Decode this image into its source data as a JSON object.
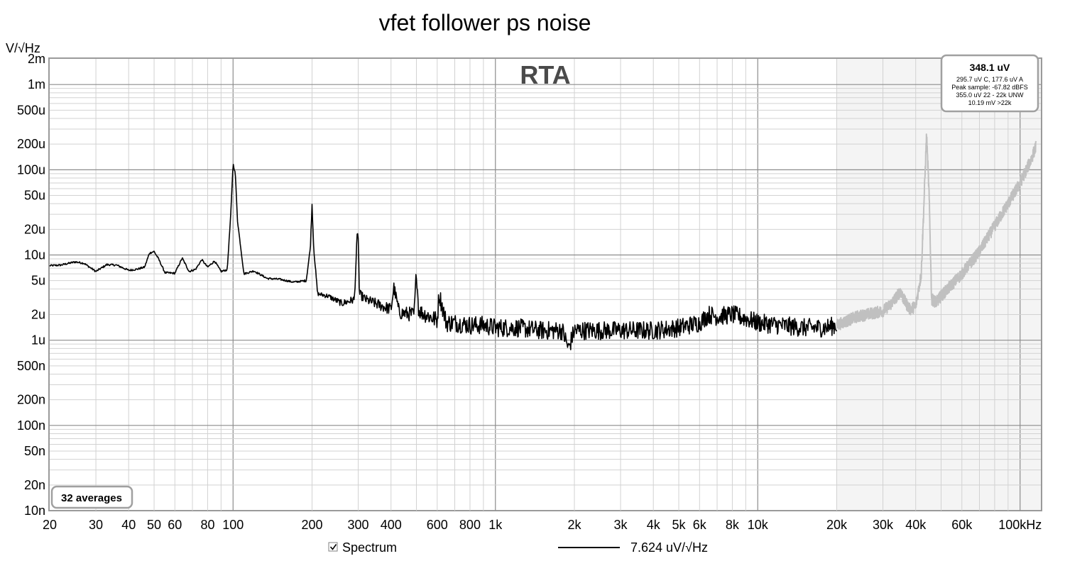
{
  "window": {
    "title": "vfet follower ps noise"
  },
  "chart_data": {
    "type": "line",
    "title": "vfet follower ps noise",
    "panel_label": "RTA",
    "ylabel": "V/√Hz",
    "xlabel": "",
    "x_unit_suffix": "Hz",
    "x_scale": "log",
    "y_scale": "log",
    "xlim": [
      20,
      120000
    ],
    "ylim": [
      1e-08,
      0.002
    ],
    "grid": true,
    "x_ticks": [
      {
        "v": 20,
        "label": "20"
      },
      {
        "v": 30,
        "label": "30"
      },
      {
        "v": 40,
        "label": "40"
      },
      {
        "v": 50,
        "label": "50"
      },
      {
        "v": 60,
        "label": "60"
      },
      {
        "v": 80,
        "label": "80"
      },
      {
        "v": 100,
        "label": "100"
      },
      {
        "v": 200,
        "label": "200"
      },
      {
        "v": 300,
        "label": "300"
      },
      {
        "v": 400,
        "label": "400"
      },
      {
        "v": 600,
        "label": "600"
      },
      {
        "v": 800,
        "label": "800"
      },
      {
        "v": 1000,
        "label": "1k"
      },
      {
        "v": 2000,
        "label": "2k"
      },
      {
        "v": 3000,
        "label": "3k"
      },
      {
        "v": 4000,
        "label": "4k"
      },
      {
        "v": 5000,
        "label": "5k"
      },
      {
        "v": 6000,
        "label": "6k"
      },
      {
        "v": 8000,
        "label": "8k"
      },
      {
        "v": 10000,
        "label": "10k"
      },
      {
        "v": 20000,
        "label": "20k"
      },
      {
        "v": 30000,
        "label": "30k"
      },
      {
        "v": 40000,
        "label": "40k"
      },
      {
        "v": 60000,
        "label": "60k"
      },
      {
        "v": 100000,
        "label": "100kHz"
      }
    ],
    "y_ticks": [
      {
        "v": 0.002,
        "label": "2m"
      },
      {
        "v": 0.001,
        "label": "1m"
      },
      {
        "v": 0.0005,
        "label": "500u"
      },
      {
        "v": 0.0002,
        "label": "200u"
      },
      {
        "v": 0.0001,
        "label": "100u"
      },
      {
        "v": 5e-05,
        "label": "50u"
      },
      {
        "v": 2e-05,
        "label": "20u"
      },
      {
        "v": 1e-05,
        "label": "10u"
      },
      {
        "v": 5e-06,
        "label": "5u"
      },
      {
        "v": 2e-06,
        "label": "2u"
      },
      {
        "v": 1e-06,
        "label": "1u"
      },
      {
        "v": 5e-07,
        "label": "500n"
      },
      {
        "v": 2e-07,
        "label": "200n"
      },
      {
        "v": 1e-07,
        "label": "100n"
      },
      {
        "v": 5e-08,
        "label": "50n"
      },
      {
        "v": 2e-08,
        "label": "20n"
      },
      {
        "v": 1e-08,
        "label": "10n"
      }
    ],
    "shaded_region_start_hz": 20000,
    "series": [
      {
        "name": "Spectrum",
        "color": "#000000",
        "range": "in-band",
        "x": [
          20,
          22,
          25,
          27,
          30,
          33,
          36,
          40,
          43,
          46,
          48,
          50,
          52,
          55,
          60,
          64,
          68,
          72,
          76,
          80,
          85,
          90,
          95,
          98,
          100,
          102,
          104,
          110,
          120,
          135,
          150,
          170,
          190,
          197,
          200,
          203,
          210,
          230,
          260,
          290,
          297,
          300,
          303,
          320,
          360,
          400,
          410,
          430,
          490,
          500,
          510,
          580,
          600,
          610,
          650,
          700,
          800,
          900,
          1000,
          1200,
          1500,
          1800,
          1900,
          2000,
          2500,
          3000,
          3500,
          4000,
          5000,
          6000,
          6500,
          7000,
          8000,
          9000,
          10000,
          12000,
          15000,
          18000,
          20000
        ],
        "y": [
          7.5e-06,
          7.6e-06,
          8.3e-06,
          8e-06,
          6.4e-06,
          7.7e-06,
          7.6e-06,
          6.6e-06,
          6.8e-06,
          7.2e-06,
          1.05e-05,
          1.1e-05,
          9e-06,
          6.2e-06,
          6.1e-06,
          9.2e-06,
          6.4e-06,
          6.8e-06,
          8.8e-06,
          7.2e-06,
          8.5e-06,
          6.4e-06,
          6.7e-06,
          3e-05,
          0.000118,
          9e-05,
          2.5e-05,
          6e-06,
          6.5e-06,
          5.3e-06,
          5.2e-06,
          4.8e-06,
          5e-06,
          1.2e-05,
          3.9e-05,
          1.2e-05,
          3.5e-06,
          3.3e-06,
          2.7e-06,
          3e-06,
          1.6e-05,
          1.7e-05,
          3.5e-06,
          3e-06,
          2.6e-06,
          2.3e-06,
          4.2e-06,
          2.1e-06,
          2e-06,
          6.5e-06,
          2.2e-06,
          1.8e-06,
          1.7e-06,
          3.5e-06,
          1.6e-06,
          1.6e-06,
          1.5e-06,
          1.5e-06,
          1.4e-06,
          1.4e-06,
          1.3e-06,
          1.3e-06,
          8e-07,
          1.3e-06,
          1.3e-06,
          1.3e-06,
          1.3e-06,
          1.3e-06,
          1.4e-06,
          1.6e-06,
          2e-06,
          1.9e-06,
          2e-06,
          1.8e-06,
          1.6e-06,
          1.5e-06,
          1.4e-06,
          1.4e-06,
          1.5e-06
        ]
      },
      {
        "name": "",
        "color": "#c0c0c0",
        "range": "out-of-band",
        "x": [
          20000,
          22000,
          24000,
          26000,
          28000,
          30000,
          32000,
          34000,
          35000,
          36000,
          38000,
          40000,
          42000,
          43000,
          44000,
          45000,
          46000,
          48000,
          50000,
          60000,
          70000,
          80000,
          90000,
          100000,
          110000,
          115000
        ],
        "y": [
          1.5e-06,
          1.7e-06,
          1.9e-06,
          2e-06,
          2.1e-06,
          2.2e-06,
          2.6e-06,
          3.3e-06,
          3.8e-06,
          3e-06,
          2.3e-06,
          2.5e-06,
          6e-06,
          4e-05,
          0.00026,
          5e-05,
          3e-06,
          2.8e-06,
          3.3e-06,
          6e-06,
          1.1e-05,
          2.2e-05,
          4e-05,
          7e-05,
          0.00013,
          0.00019
        ]
      }
    ],
    "info_box": {
      "main": "348.1 uV",
      "lines": [
        "295.7 uV C, 177.6 uV A",
        "Peak sample: -67.82 dBFS",
        "355.0 uV 22 - 22k UNW",
        "10.19 mV >22k"
      ]
    },
    "averages_label": "32 averages",
    "legend": {
      "checkbox_label": "Spectrum",
      "checked": true,
      "value_label": "7.624 uV/√Hz"
    }
  }
}
